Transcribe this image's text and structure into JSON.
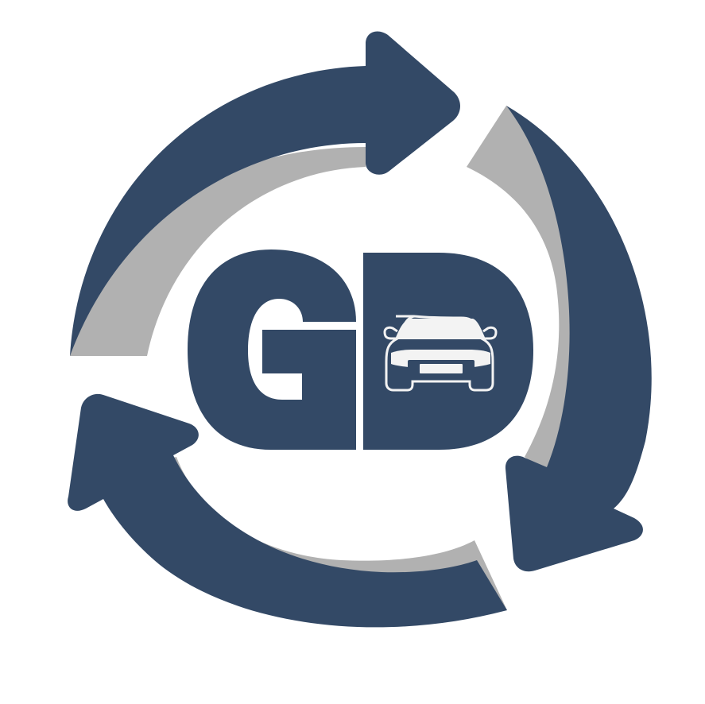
{
  "logo": {
    "monogram": "GD",
    "icon": "car-front-icon",
    "motif": "circular-refresh-arrows-icon",
    "colors": {
      "primary": "#334966",
      "shadow": "#b1b1b1",
      "background": "#ffffff",
      "car": "#f3f3f3"
    }
  }
}
